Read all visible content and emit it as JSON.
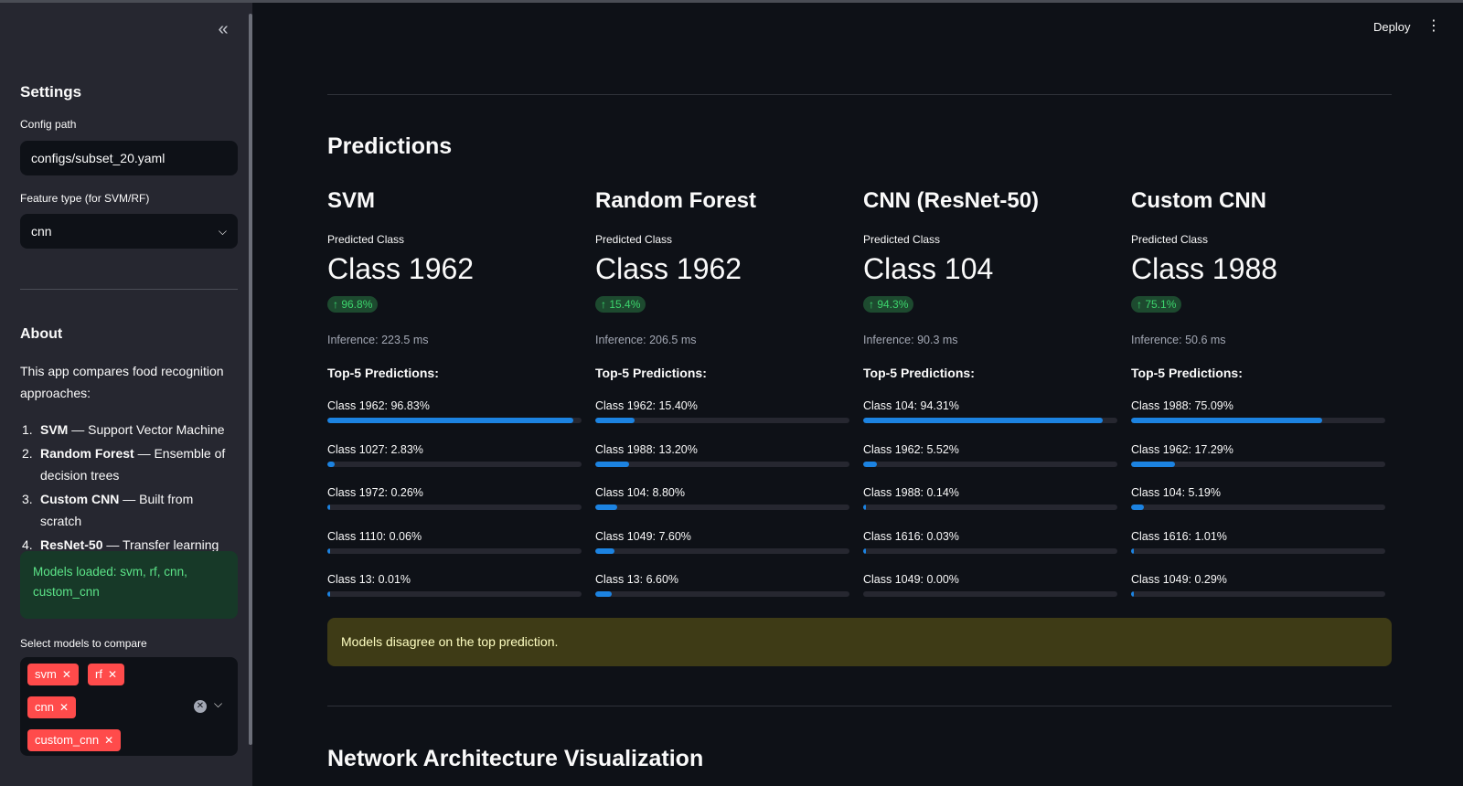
{
  "header": {
    "deploy_label": "Deploy",
    "menu_icon": "kebab-icon"
  },
  "sidebar": {
    "collapse_icon": "double-chevron-left-icon",
    "settings_title": "Settings",
    "config_label": "Config path",
    "config_value": "configs/subset_20.yaml",
    "feature_label": "Feature type (for SVM/RF)",
    "feature_value": "cnn",
    "about_title": "About",
    "about_text": "This app compares food recognition approaches:",
    "approaches": [
      {
        "num": "1.",
        "name": "SVM",
        "desc": " — Support Vector Machine"
      },
      {
        "num": "2.",
        "name": "Random Forest",
        "desc": " — Ensemble of decision trees"
      },
      {
        "num": "3.",
        "name": "Custom CNN",
        "desc": " — Built from scratch"
      },
      {
        "num": "4.",
        "name": "ResNet-50",
        "desc": " — Transfer learning"
      }
    ],
    "success_text": "Models loaded: svm, rf, cnn, custom_cnn",
    "select_label": "Select models to compare",
    "selected_models": [
      "svm",
      "rf",
      "cnn",
      "custom_cnn"
    ]
  },
  "main": {
    "predictions_title": "Predictions",
    "predicted_class_label": "Predicted Class",
    "top5_label": "Top-5 Predictions:",
    "models": [
      {
        "title": "SVM",
        "predicted": "Class 1962",
        "delta": "↑ 96.8%",
        "inference": "Inference: 223.5 ms",
        "top5": [
          {
            "label": "Class 1962: 96.83%",
            "value": 96.83
          },
          {
            "label": "Class 1027: 2.83%",
            "value": 2.83
          },
          {
            "label": "Class 1972: 0.26%",
            "value": 0.26
          },
          {
            "label": "Class 1110: 0.06%",
            "value": 0.06
          },
          {
            "label": "Class 13: 0.01%",
            "value": 0.01
          }
        ]
      },
      {
        "title": "Random Forest",
        "predicted": "Class 1962",
        "delta": "↑ 15.4%",
        "inference": "Inference: 206.5 ms",
        "top5": [
          {
            "label": "Class 1962: 15.40%",
            "value": 15.4
          },
          {
            "label": "Class 1988: 13.20%",
            "value": 13.2
          },
          {
            "label": "Class 104: 8.80%",
            "value": 8.8
          },
          {
            "label": "Class 1049: 7.60%",
            "value": 7.6
          },
          {
            "label": "Class 13: 6.60%",
            "value": 6.6
          }
        ]
      },
      {
        "title": "CNN (ResNet-50)",
        "predicted": "Class 104",
        "delta": "↑ 94.3%",
        "inference": "Inference: 90.3 ms",
        "top5": [
          {
            "label": "Class 104: 94.31%",
            "value": 94.31
          },
          {
            "label": "Class 1962: 5.52%",
            "value": 5.52
          },
          {
            "label": "Class 1988: 0.14%",
            "value": 0.14
          },
          {
            "label": "Class 1616: 0.03%",
            "value": 0.03
          },
          {
            "label": "Class 1049: 0.00%",
            "value": 0.0
          }
        ]
      },
      {
        "title": "Custom CNN",
        "predicted": "Class 1988",
        "delta": "↑ 75.1%",
        "inference": "Inference: 50.6 ms",
        "top5": [
          {
            "label": "Class 1988: 75.09%",
            "value": 75.09
          },
          {
            "label": "Class 1962: 17.29%",
            "value": 17.29
          },
          {
            "label": "Class 104: 5.19%",
            "value": 5.19
          },
          {
            "label": "Class 1616: 1.01%",
            "value": 1.01
          },
          {
            "label": "Class 1049: 0.29%",
            "value": 0.29
          }
        ]
      }
    ],
    "warning_text": "Models disagree on the top prediction.",
    "network_title": "Network Architecture Visualization"
  },
  "colors": {
    "background": "#0e1117",
    "sidebar": "#262730",
    "tag": "#ff4b4b",
    "progress": "#1c83e1",
    "success_bg": "#173928",
    "success_text": "#5ce488",
    "warning_bg": "#3e3b16",
    "warning_text": "#ffffc2",
    "delta_text": "#3dd56d"
  }
}
